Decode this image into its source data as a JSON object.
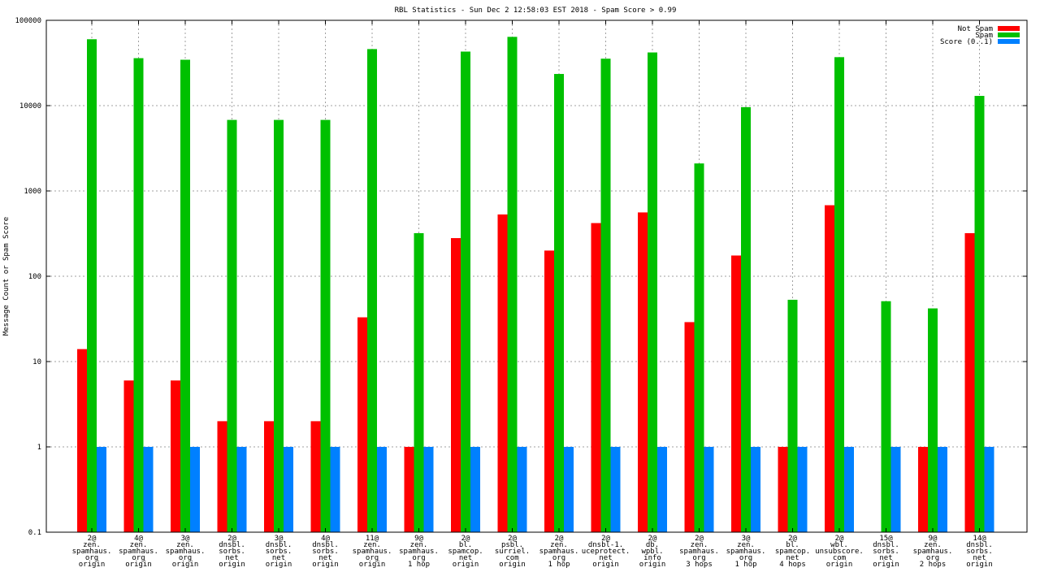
{
  "chart_data": {
    "type": "bar",
    "title": "RBL Statistics - Sun Dec  2 12:58:03 EST 2018 - Spam Score > 0.99",
    "xlabel": "",
    "ylabel": "Message Count or Spam Score",
    "yscale": "log",
    "ylim": [
      0.1,
      100000
    ],
    "yticks": [
      "0.1",
      "1",
      "10",
      "100",
      "1000",
      "10000",
      "100000"
    ],
    "grid": true,
    "legend_position": "top-right",
    "categories": [
      [
        "2@",
        "zen.",
        "spamhaus.",
        "org",
        "origin"
      ],
      [
        "4@",
        "zen.",
        "spamhaus.",
        "org",
        "origin"
      ],
      [
        "3@",
        "zen.",
        "spamhaus.",
        "org",
        "origin"
      ],
      [
        "2@",
        "dnsbl.",
        "sorbs.",
        "net",
        "origin"
      ],
      [
        "3@",
        "dnsbl.",
        "sorbs.",
        "net",
        "origin"
      ],
      [
        "4@",
        "dnsbl.",
        "sorbs.",
        "net",
        "origin"
      ],
      [
        "11@",
        "zen.",
        "spamhaus.",
        "org",
        "origin"
      ],
      [
        "9@",
        "zen.",
        "spamhaus.",
        "org",
        "1 hop"
      ],
      [
        "2@",
        "bl.",
        "spamcop.",
        "net",
        "origin"
      ],
      [
        "2@",
        "psbl.",
        "surriel.",
        "com",
        "origin"
      ],
      [
        "2@",
        "zen.",
        "spamhaus.",
        "org",
        "1 hop"
      ],
      [
        "2@",
        "dnsbl-1.",
        "uceprotect.",
        "net",
        "origin"
      ],
      [
        "2@",
        "db.",
        "wpbl.",
        "info",
        "origin"
      ],
      [
        "2@",
        "zen.",
        "spamhaus.",
        "org",
        "3 hops"
      ],
      [
        "3@",
        "zen.",
        "spamhaus.",
        "org",
        "1 hop"
      ],
      [
        "2@",
        "bl.",
        "spamcop.",
        "net",
        "4 hops"
      ],
      [
        "2@",
        "wbl.",
        "unsubscore.",
        "com",
        "origin"
      ],
      [
        "15@",
        "dnsbl.",
        "sorbs.",
        "net",
        "origin"
      ],
      [
        "9@",
        "zen.",
        "spamhaus.",
        "org",
        "2 hops"
      ],
      [
        "14@",
        "dnsbl.",
        "sorbs.",
        "net",
        "origin"
      ]
    ],
    "series": [
      {
        "name": "Not Spam",
        "color": "#ff0000",
        "values": [
          14,
          6,
          6,
          2,
          2,
          2,
          33,
          1,
          280,
          530,
          200,
          420,
          560,
          29,
          175,
          1,
          680,
          null,
          1,
          320
        ]
      },
      {
        "name": "Spam",
        "color": "#00c000",
        "values": [
          60000,
          36000,
          34500,
          6800,
          6800,
          6800,
          46000,
          320,
          43000,
          64000,
          23500,
          35500,
          42000,
          2100,
          9600,
          53,
          37000,
          51,
          42,
          13000
        ]
      },
      {
        "name": "Score (0..1)",
        "color": "#0080ff",
        "values": [
          1,
          1,
          1,
          1,
          1,
          1,
          1,
          1,
          1,
          1,
          1,
          1,
          1,
          1,
          1,
          1,
          1,
          1,
          1,
          1
        ]
      }
    ]
  }
}
